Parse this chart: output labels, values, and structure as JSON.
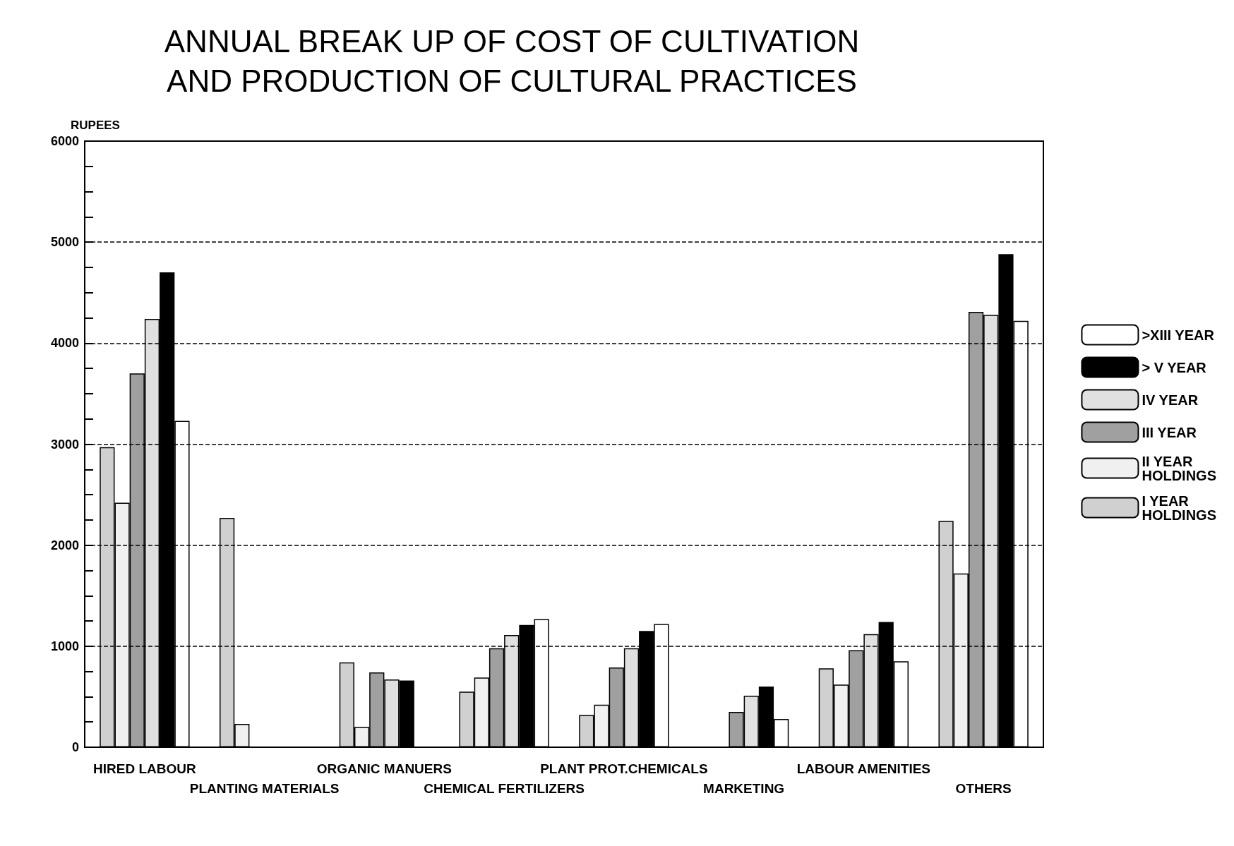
{
  "chart_data": {
    "type": "bar",
    "title": "ANNUAL BREAK UP OF COST OF CULTIVATION\nAND PRODUCTION OF CULTURAL PRACTICES",
    "ylabel": "RUPEES",
    "categories": [
      "HIRED LABOUR",
      "PLANTING MATERIALS",
      "ORGANIC MANUERS",
      "CHEMICAL FERTILIZERS",
      "PLANT PROT.CHEMICALS",
      "MARKETING",
      "LABOUR AMENITIES",
      "OTHERS"
    ],
    "series": [
      {
        "name": "I YEAR HOLDINGS",
        "color": "#d0d0d0",
        "values": [
          2970,
          2270,
          840,
          550,
          320,
          null,
          780,
          2240
        ]
      },
      {
        "name": "II YEAR HOLDINGS",
        "color": "#f0f0f0",
        "values": [
          2420,
          230,
          200,
          690,
          420,
          null,
          620,
          1720
        ]
      },
      {
        "name": "III YEAR",
        "color": "#a0a0a0",
        "values": [
          3700,
          null,
          740,
          980,
          790,
          350,
          960,
          4310
        ]
      },
      {
        "name": "IV YEAR",
        "color": "#e0e0e0",
        "values": [
          4240,
          null,
          670,
          1110,
          980,
          510,
          1120,
          4280
        ]
      },
      {
        "name": "> V YEAR",
        "color": "#000000",
        "values": [
          4700,
          null,
          660,
          1210,
          1150,
          600,
          1240,
          4880
        ]
      },
      {
        "name": ">XIII YEAR",
        "color": "#ffffff",
        "values": [
          3230,
          null,
          null,
          1270,
          1220,
          280,
          850,
          4220
        ]
      }
    ],
    "ylim": [
      0,
      6000
    ],
    "yticks": [
      0,
      {
        "value": 250,
        "label": null
      },
      {
        "value": 500,
        "label": null
      },
      {
        "value": 750,
        "label": null
      },
      1000,
      {
        "value": 1250,
        "label": null
      },
      {
        "value": 1500,
        "label": null
      },
      {
        "value": 1750,
        "label": null
      },
      2000,
      {
        "value": 2250,
        "label": null
      },
      {
        "value": 2500,
        "label": null
      },
      {
        "value": 2750,
        "label": null
      },
      3000,
      {
        "value": 3250,
        "label": null
      },
      {
        "value": 3500,
        "label": null
      },
      {
        "value": 3750,
        "label": null
      },
      4000,
      {
        "value": 4250,
        "label": null
      },
      {
        "value": 4500,
        "label": null
      },
      {
        "value": 4750,
        "label": null
      },
      5000,
      {
        "value": 5250,
        "label": null
      },
      {
        "value": 5500,
        "label": null
      },
      {
        "value": 5750,
        "label": null
      },
      6000
    ],
    "grid": "y",
    "line_style": "dashed",
    "legend": "right"
  }
}
